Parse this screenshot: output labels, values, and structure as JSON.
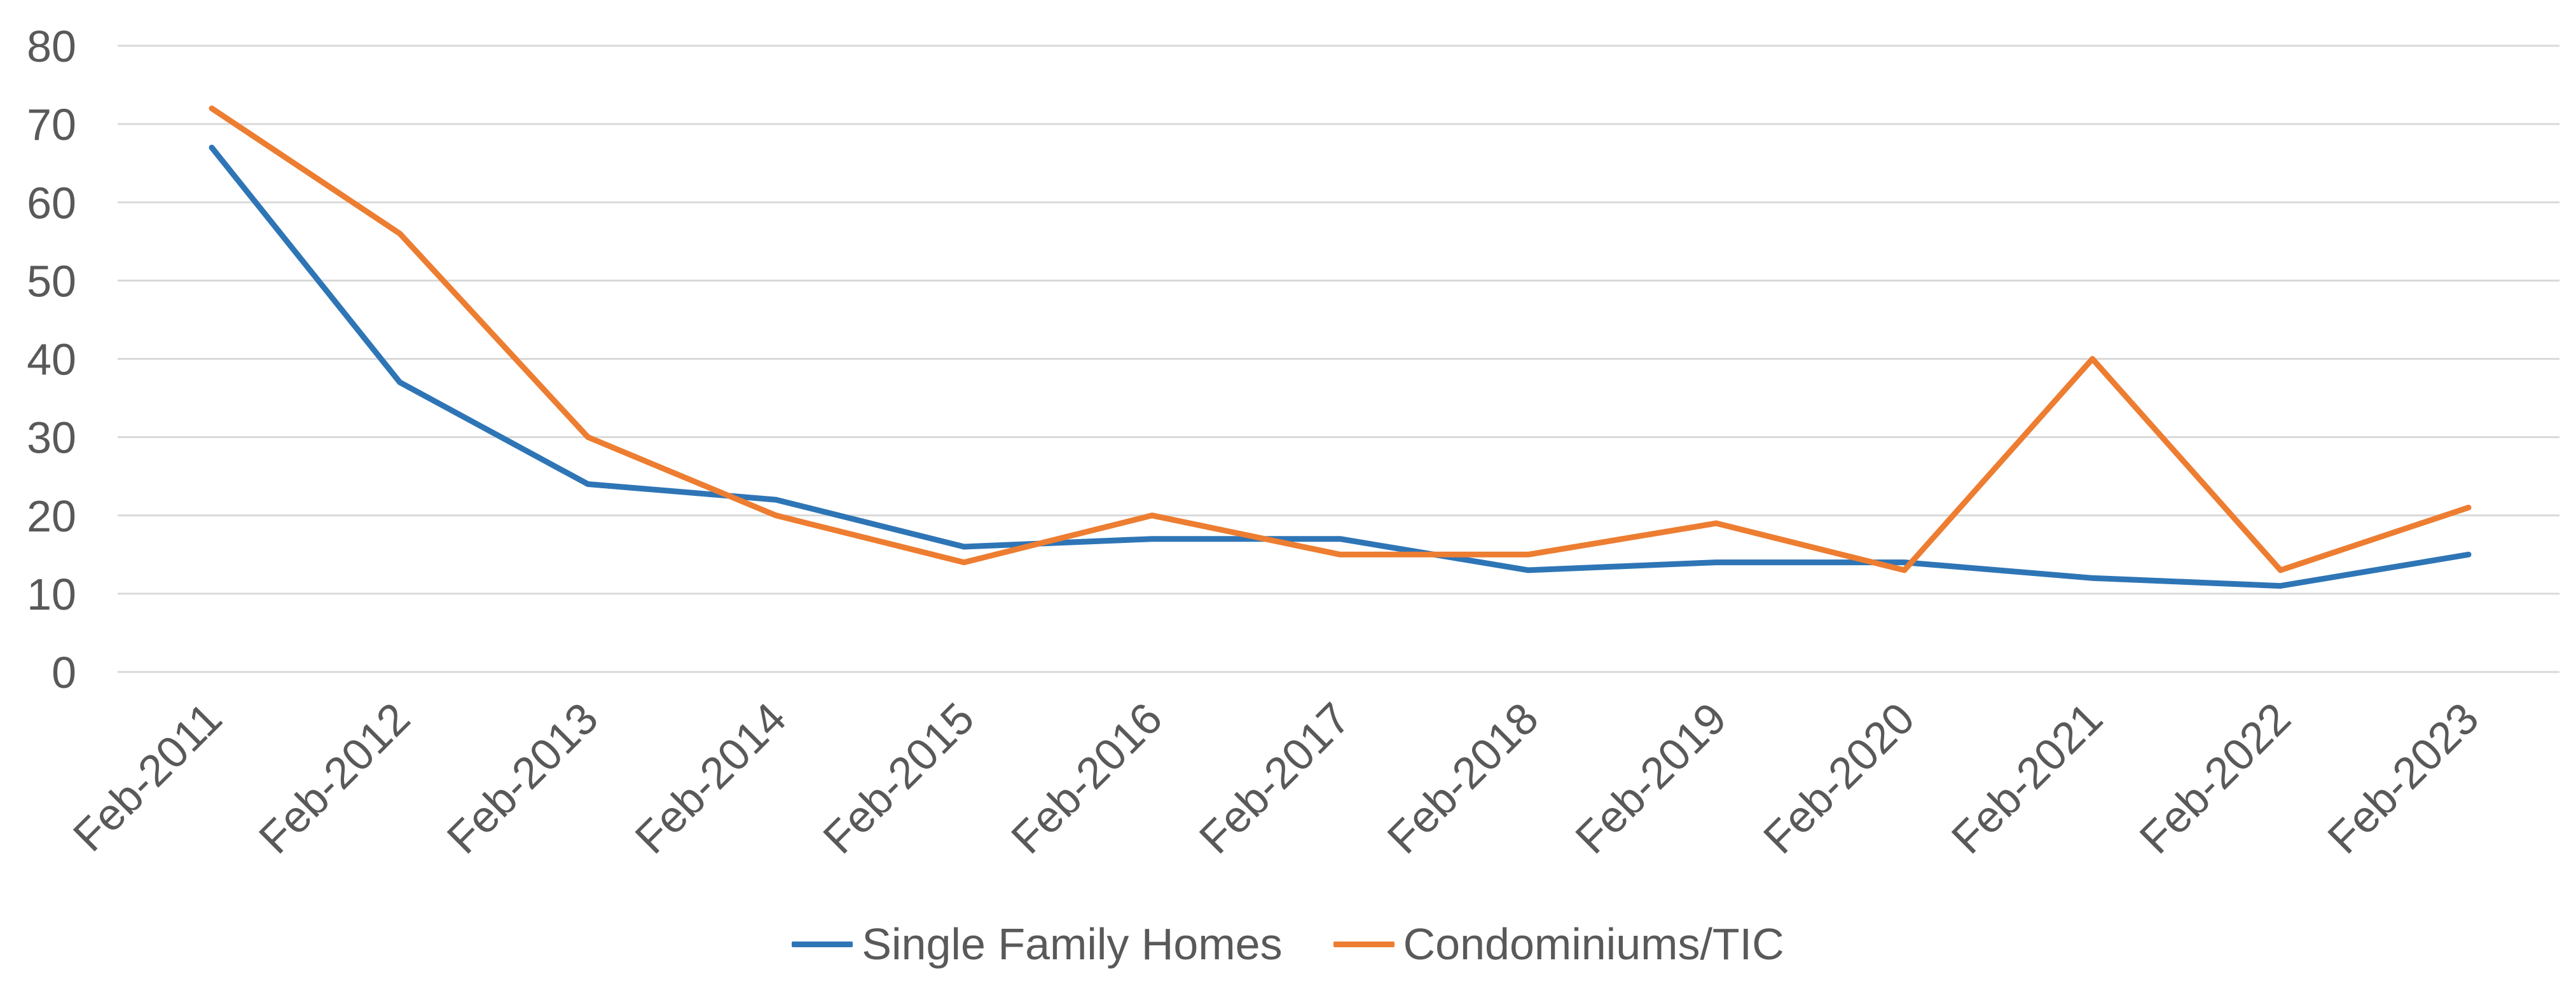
{
  "chart_data": {
    "type": "line",
    "title": "",
    "xlabel": "",
    "ylabel": "",
    "categories": [
      "Feb-2011",
      "Feb-2012",
      "Feb-2013",
      "Feb-2014",
      "Feb-2015",
      "Feb-2016",
      "Feb-2017",
      "Feb-2018",
      "Feb-2019",
      "Feb-2020",
      "Feb-2021",
      "Feb-2022",
      "Feb-2023"
    ],
    "ylim": [
      0,
      80
    ],
    "yticks": [
      "0",
      "10",
      "20",
      "30",
      "40",
      "50",
      "60",
      "70",
      "80"
    ],
    "grid": true,
    "legend_position": "bottom",
    "series": [
      {
        "name": "Single Family Homes",
        "color": "#2e75b6",
        "values": [
          67,
          37,
          24,
          22,
          16,
          17,
          17,
          13,
          14,
          14,
          12,
          11,
          15
        ]
      },
      {
        "name": "Condominiums/TIC",
        "color": "#ed7d31",
        "values": [
          72,
          56,
          30,
          20,
          14,
          20,
          15,
          15,
          19,
          13,
          40,
          13,
          21
        ]
      }
    ]
  }
}
